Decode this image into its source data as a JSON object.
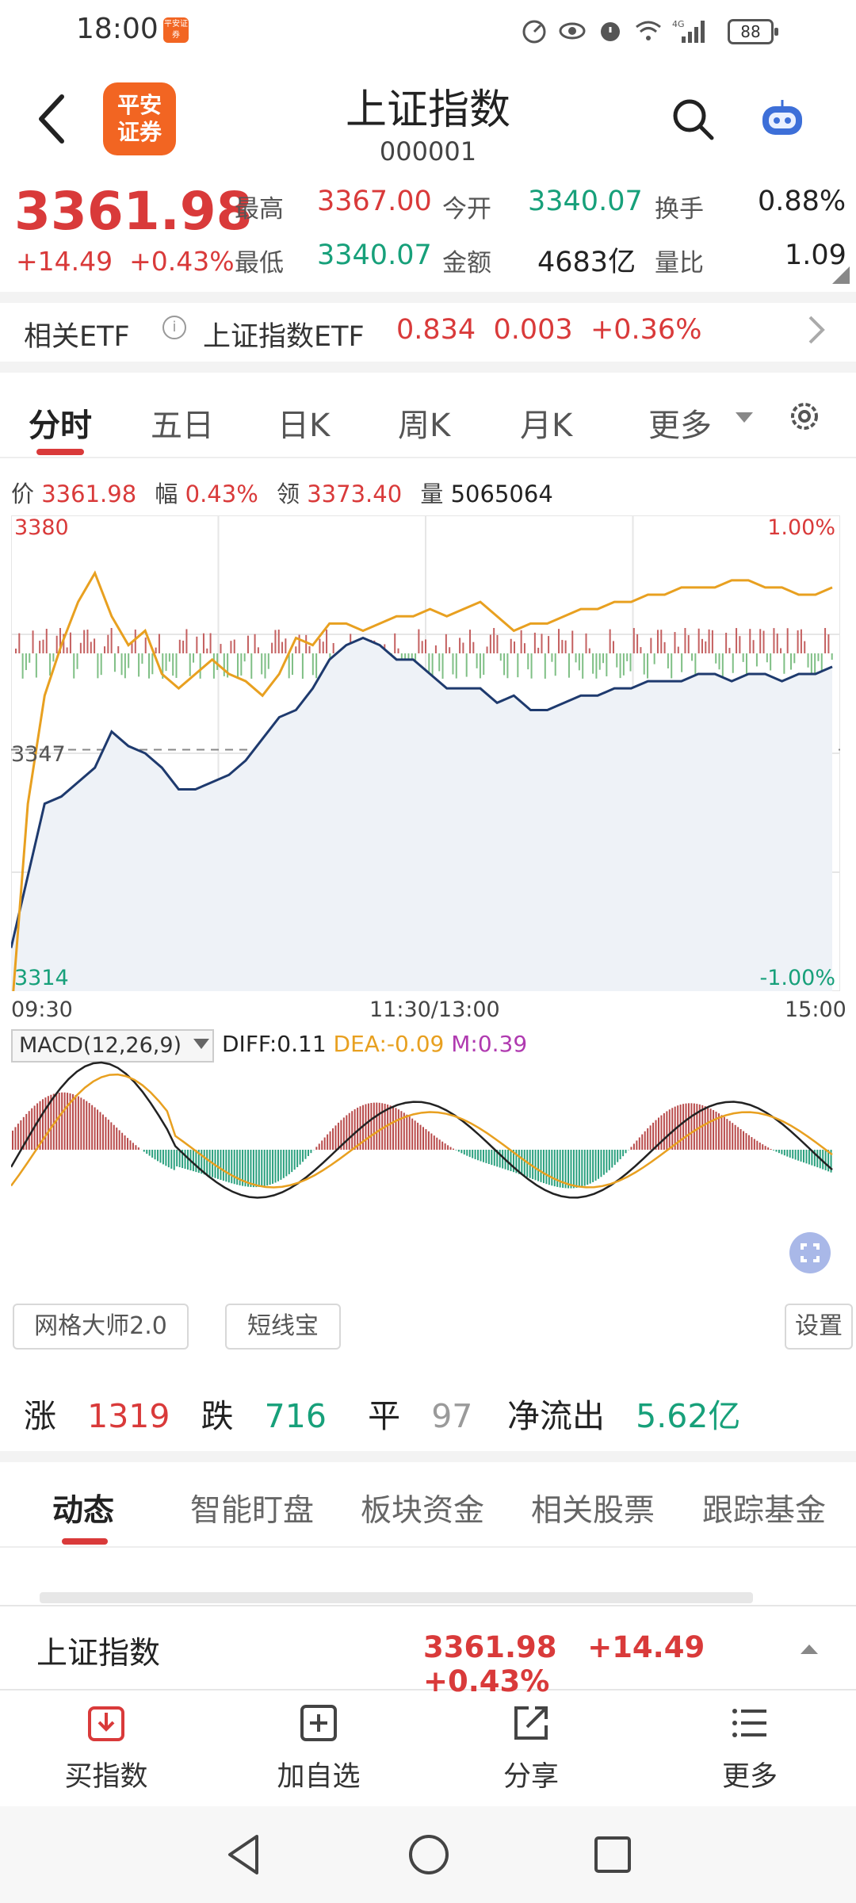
{
  "status_bar": {
    "time": "18:00",
    "app_icon_text": "平安证券",
    "battery": "88",
    "network": "4G"
  },
  "header": {
    "title": "上证指数",
    "code": "000001",
    "logo_text": "平安证券"
  },
  "quote": {
    "price": "3361.98",
    "change": "+14.49",
    "change_pct": "+0.43%",
    "stats": [
      {
        "label": "最高",
        "value": "3367.00",
        "tone": "red"
      },
      {
        "label": "今开",
        "value": "3340.07",
        "tone": "green"
      },
      {
        "label": "换手",
        "value": "0.88%",
        "tone": "dark"
      },
      {
        "label": "最低",
        "value": "3340.07",
        "tone": "green"
      },
      {
        "label": "金额",
        "value": "4683亿",
        "tone": "dark"
      },
      {
        "label": "量比",
        "value": "1.09",
        "tone": "dark"
      }
    ]
  },
  "etf": {
    "label": "相关ETF",
    "name": "上证指数ETF",
    "price": "0.834",
    "change": "0.003",
    "change_pct": "+0.36%"
  },
  "chart_tabs": [
    "分时",
    "五日",
    "日K",
    "周K",
    "月K",
    "更多"
  ],
  "price_info": {
    "price_label": "价",
    "price": "3361.98",
    "amp_label": "幅",
    "amp": "0.43%",
    "lead_label": "领",
    "lead": "3373.40",
    "vol_label": "量",
    "vol": "5065064"
  },
  "chart_labels": {
    "y_top": "3380",
    "y_mid": "3347",
    "y_bottom": "3314",
    "pct_top": "1.00%",
    "pct_bottom": "-1.00%",
    "t_start": "09:30",
    "t_mid": "11:30/13:00",
    "t_end": "15:00"
  },
  "chart_data": {
    "type": "line",
    "ylim": [
      3314,
      3380
    ],
    "x_ticks": [
      "09:30",
      "11:30/13:00",
      "15:00"
    ],
    "series": [
      {
        "name": "价",
        "color": "#1e3a6e",
        "values": [
          3320,
          3330,
          3340,
          3341,
          3343,
          3345,
          3350,
          3348,
          3347,
          3345,
          3342,
          3342,
          3343,
          3344,
          3346,
          3349,
          3352,
          3353,
          3356,
          3360,
          3362,
          3363,
          3362,
          3360,
          3360,
          3358,
          3356,
          3356,
          3356,
          3354,
          3355,
          3353,
          3353,
          3354,
          3355,
          3355,
          3356,
          3356,
          3357,
          3357,
          3357,
          3358,
          3358,
          3357,
          3358,
          3358,
          3357,
          3358,
          3358,
          3359
        ]
      },
      {
        "name": "领",
        "color": "#e8a020",
        "values": [
          3310,
          3340,
          3355,
          3362,
          3368,
          3372,
          3366,
          3362,
          3364,
          3358,
          3356,
          3358,
          3360,
          3358,
          3357,
          3355,
          3358,
          3363,
          3362,
          3365,
          3365,
          3364,
          3365,
          3366,
          3366,
          3367,
          3366,
          3367,
          3368,
          3366,
          3364,
          3365,
          3365,
          3366,
          3367,
          3367,
          3368,
          3368,
          3369,
          3369,
          3370,
          3370,
          3370,
          3371,
          3371,
          3370,
          3370,
          3369,
          3369,
          3370
        ]
      }
    ],
    "prev_close": 3347.49
  },
  "macd": {
    "selector": "MACD(12,26,9)",
    "diff": "DIFF:0.11",
    "dea": "DEA:-0.09",
    "m": "M:0.39",
    "diff_color": "#222222",
    "dea_color": "#e8a020",
    "m_color": "#b03ab0"
  },
  "tools": {
    "grid": "网格大师2.0",
    "short": "短线宝",
    "settings": "设置"
  },
  "breadth": {
    "up_label": "涨",
    "up": "1319",
    "down_label": "跌",
    "down": "716",
    "flat_label": "平",
    "flat": "97",
    "flow_label": "净流出",
    "flow": "5.62亿"
  },
  "news_tabs": [
    "动态",
    "智能盯盘",
    "板块资金",
    "相关股票",
    "跟踪基金"
  ],
  "bottom_quote": {
    "name": "上证指数",
    "price": "3361.98",
    "change": "+14.49",
    "change_pct": "+0.43%"
  },
  "actions": [
    {
      "label": "买指数",
      "icon": "buy-index-icon"
    },
    {
      "label": "加自选",
      "icon": "add-watchlist-icon"
    },
    {
      "label": "分享",
      "icon": "share-icon"
    },
    {
      "label": "更多",
      "icon": "more-menu-icon"
    }
  ],
  "colors": {
    "up": "#d93a3a",
    "down": "#17a07a",
    "brand": "#f26522"
  }
}
